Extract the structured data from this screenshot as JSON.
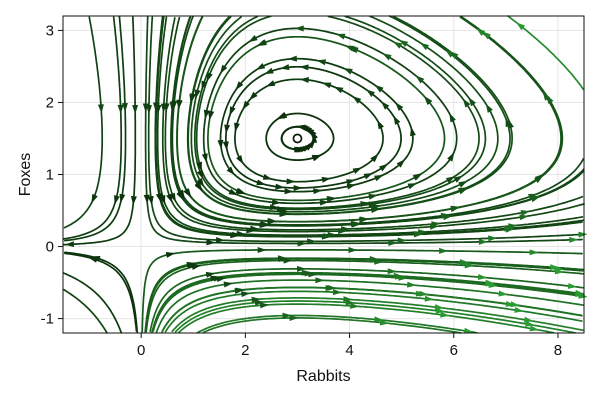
{
  "chart_data": {
    "type": "streamplot",
    "title": "",
    "xlabel": "Rabbits",
    "ylabel": "Foxes",
    "xlim": [
      -1.5,
      8.5
    ],
    "ylim": [
      -1.2,
      3.2
    ],
    "xticks": [
      0,
      2,
      4,
      6,
      8
    ],
    "yticks": [
      -1,
      0,
      1,
      2,
      3
    ],
    "xtick_labels": [
      "0",
      "2",
      "4",
      "6",
      "8"
    ],
    "ytick_labels": [
      "-1",
      "0",
      "1",
      "2",
      "3"
    ],
    "grid": true,
    "colors": {
      "slow": "#0a2a0a",
      "fast": "#2a9a32"
    },
    "vector_field": {
      "model": "Lotka-Volterra predator-prey",
      "dx": "x*(1 - y/1.5)",
      "dy": "y*(x/3 - 1)",
      "fixed_points": [
        [
          0,
          0
        ],
        [
          3,
          1.5
        ]
      ]
    },
    "seeds": [
      [
        -0.95,
        3.0
      ],
      [
        -0.5,
        3.0
      ],
      [
        -0.15,
        3.0
      ],
      [
        0.2,
        3.0
      ],
      [
        0.45,
        3.0
      ],
      [
        -0.9,
        -0.95
      ],
      [
        -0.5,
        -1.0
      ],
      [
        -0.1,
        -1.0
      ],
      [
        0.3,
        -1.0
      ],
      [
        -0.8,
        0.2
      ],
      [
        -0.8,
        -0.2
      ],
      [
        0.6,
        -0.1
      ],
      [
        0.6,
        0.1
      ],
      [
        1.2,
        -0.4
      ],
      [
        1.3,
        -0.9
      ],
      [
        2.0,
        -0.6
      ],
      [
        2.3,
        -0.2
      ],
      [
        2.5,
        -1.0
      ],
      [
        3.2,
        -0.8
      ],
      [
        4.0,
        -0.4
      ],
      [
        4.3,
        -1.0
      ],
      [
        5.1,
        -0.7
      ],
      [
        5.6,
        -0.2
      ],
      [
        6.3,
        -0.9
      ],
      [
        6.6,
        -0.5
      ],
      [
        7.4,
        -0.7
      ],
      [
        7.8,
        -0.3
      ],
      [
        8.0,
        -0.9
      ],
      [
        1.0,
        0.4
      ],
      [
        1.6,
        0.7
      ],
      [
        2.2,
        0.9
      ],
      [
        3.0,
        1.2
      ],
      [
        3.0,
        1.35
      ],
      [
        3.0,
        0.9
      ],
      [
        3.0,
        0.6
      ],
      [
        3.0,
        0.3
      ],
      [
        4.0,
        0.15
      ],
      [
        6.0,
        0.3
      ],
      [
        7.2,
        0.6
      ],
      [
        8.0,
        0.3
      ],
      [
        8.0,
        0.8
      ],
      [
        7.0,
        1.2
      ],
      [
        8.0,
        1.8
      ],
      [
        6.5,
        2.1
      ],
      [
        7.0,
        2.7
      ],
      [
        8.0,
        2.6
      ],
      [
        5.5,
        2.9
      ],
      [
        4.5,
        2.6
      ],
      [
        5.2,
        1.6
      ],
      [
        6.2,
        1.0
      ]
    ]
  }
}
